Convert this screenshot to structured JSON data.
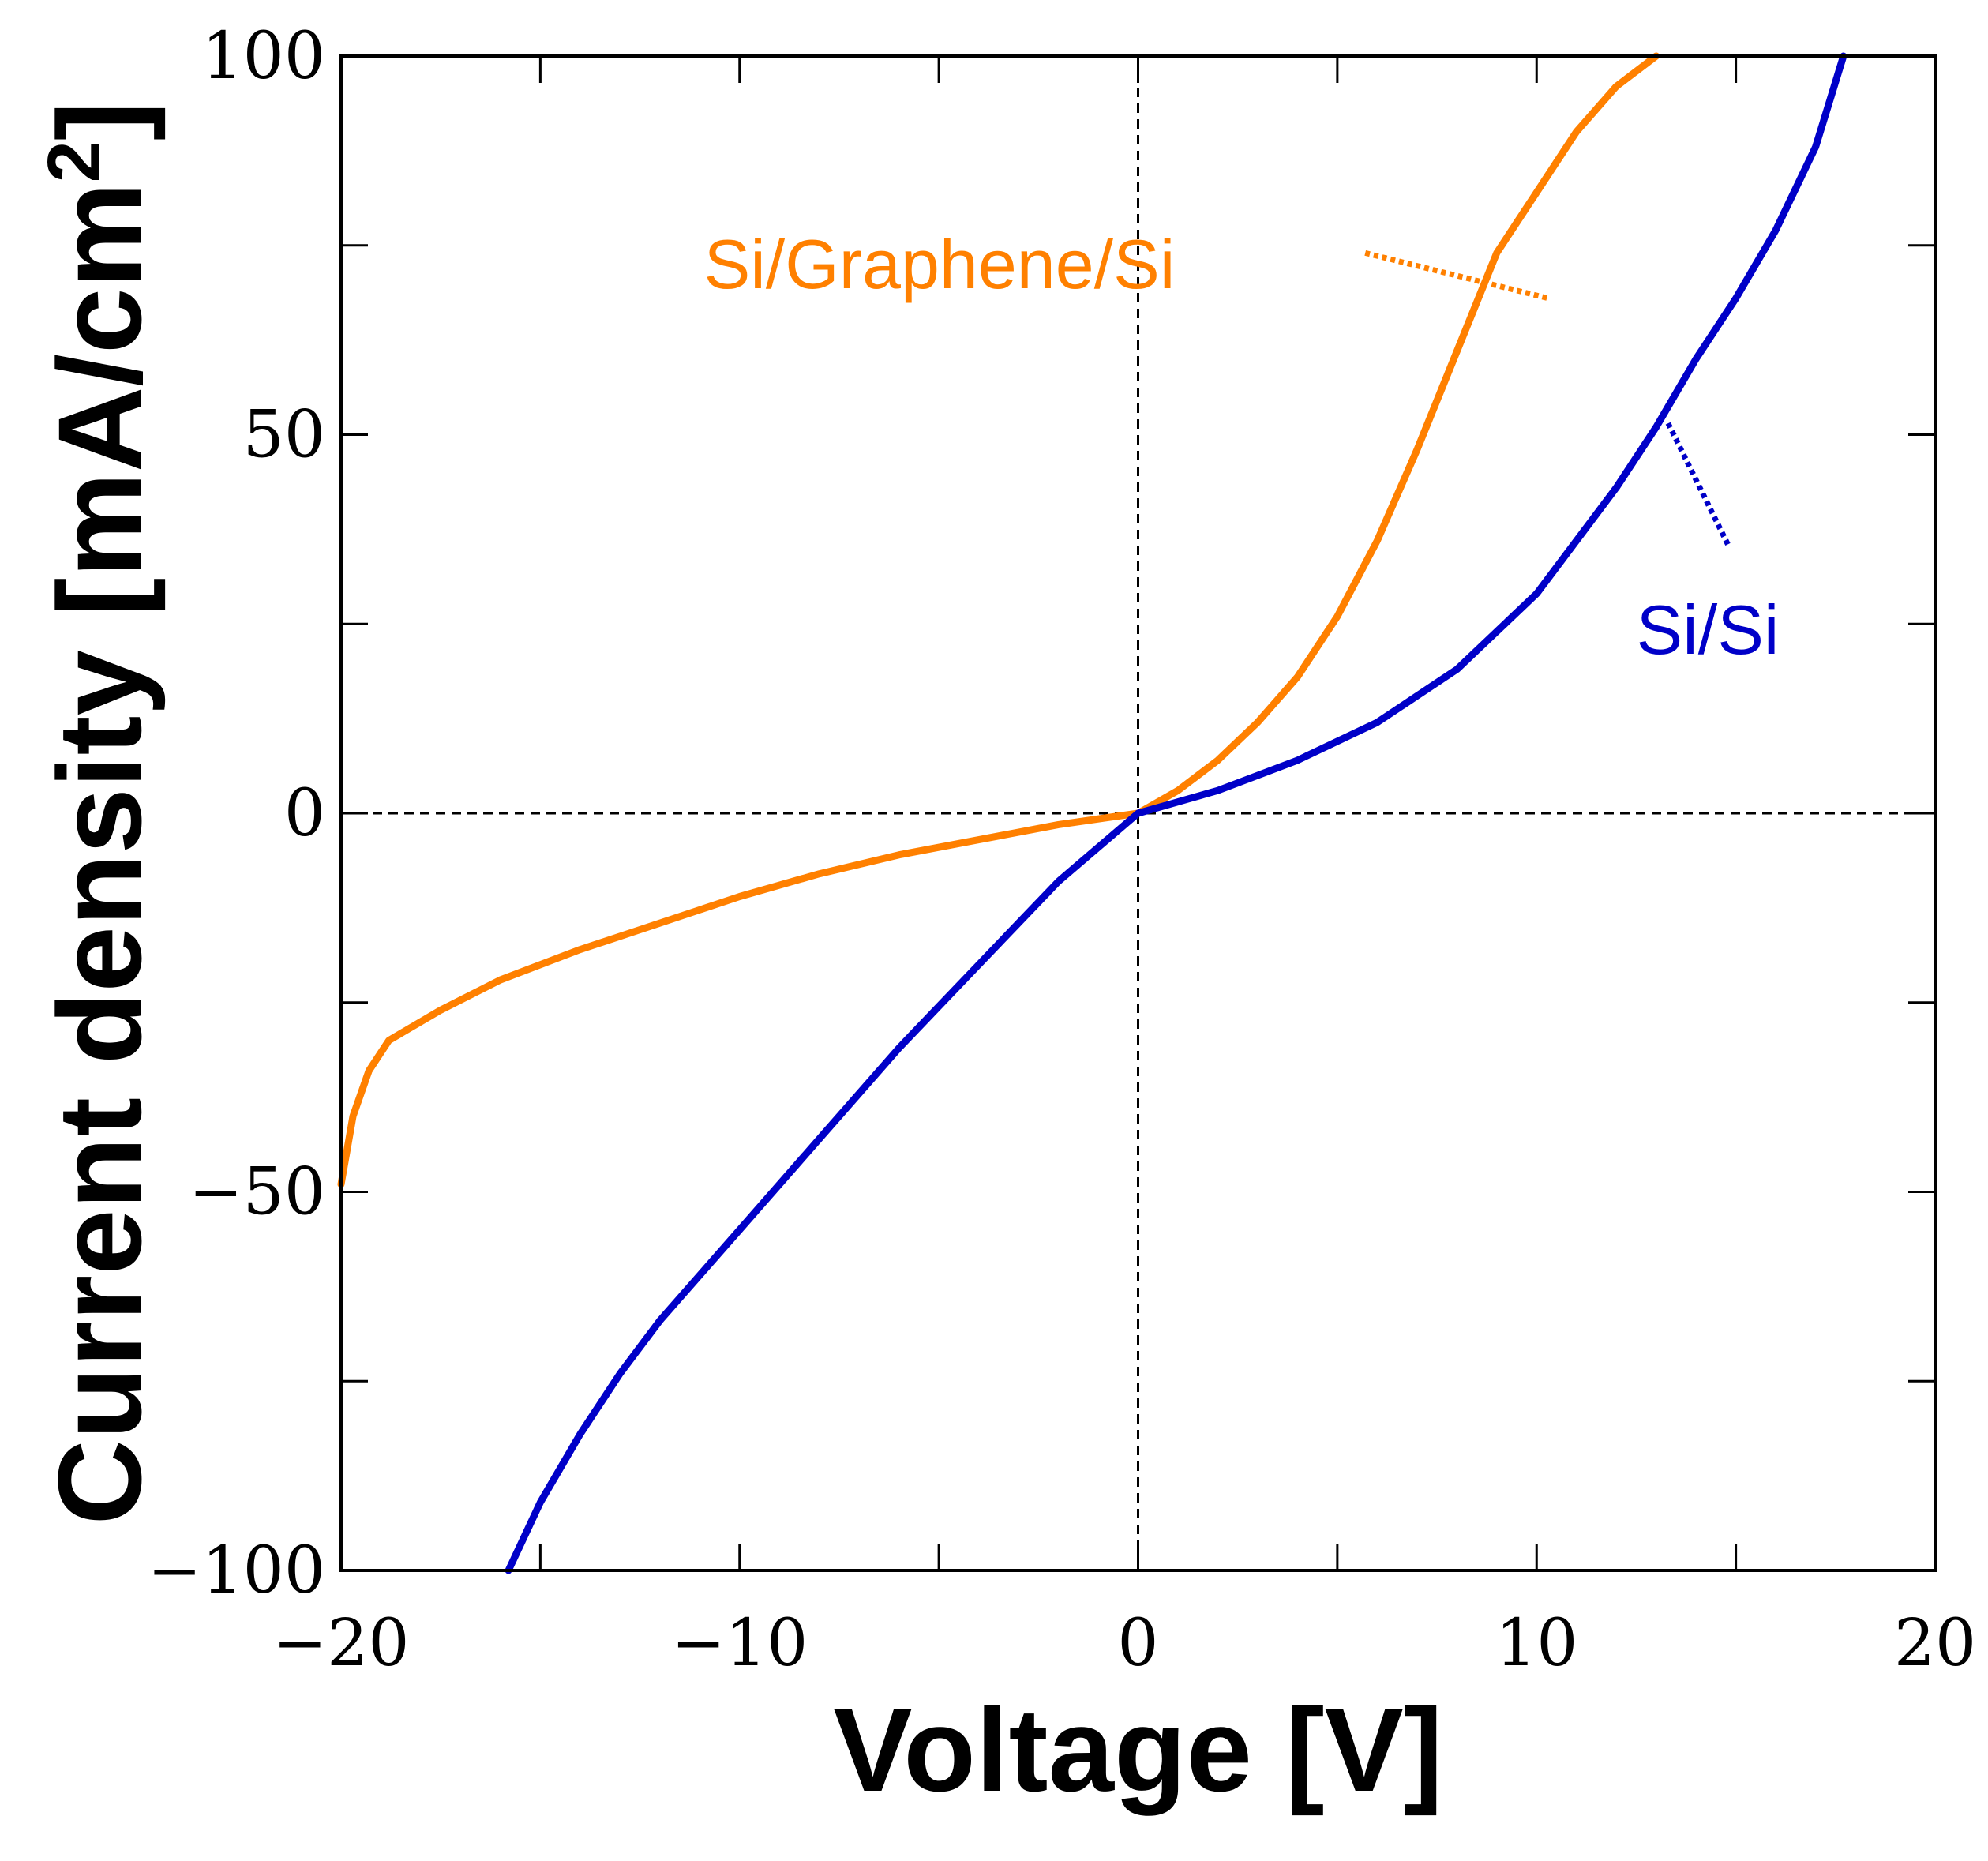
{
  "chart_data": {
    "type": "line",
    "title": "",
    "xlabel": "Voltage [V]",
    "ylabel_main": "Current density [mA/cm",
    "ylabel_sup": "2",
    "ylabel_close": "]",
    "xlim": [
      -20,
      20
    ],
    "ylim": [
      -100,
      100
    ],
    "xticks": [
      -20,
      -10,
      0,
      10,
      20
    ],
    "yticks": [
      -100,
      -50,
      0,
      50,
      100
    ],
    "xtick_labels": [
      "−20",
      "−10",
      "0",
      "10",
      "20"
    ],
    "ytick_labels": [
      "−100",
      "−50",
      "0",
      "50",
      "100"
    ],
    "x_minor_step": 5,
    "y_minor_step": 25,
    "zero_lines": true,
    "series": [
      {
        "name": "Si/Graphene/Si",
        "color": "#ff8000",
        "x": [
          -20,
          -19.7,
          -19.3,
          -18.8,
          -17.5,
          -16,
          -14,
          -12,
          -10,
          -8,
          -6,
          -4,
          -2,
          0,
          1,
          2,
          3,
          4,
          5,
          6,
          7,
          8,
          9,
          10,
          11,
          12,
          13
        ],
        "y": [
          -49,
          -40,
          -34,
          -30,
          -26,
          -22,
          -18,
          -14.5,
          -11,
          -8,
          -5.5,
          -3.5,
          -1.5,
          0,
          3,
          7,
          12,
          18,
          26,
          36,
          48,
          61,
          74,
          82,
          90,
          96,
          100
        ]
      },
      {
        "name": "Si/Si",
        "color": "#0000c8",
        "x": [
          -15.8,
          -15,
          -14,
          -13,
          -12,
          -10,
          -8,
          -6,
          -4,
          -2,
          0,
          2,
          4,
          6,
          8,
          10,
          12,
          13,
          14,
          15,
          16,
          17,
          17.7
        ],
        "y": [
          -100,
          -91,
          -82,
          -74,
          -67,
          -55,
          -43,
          -31,
          -20,
          -9,
          0,
          3,
          7,
          12,
          19,
          29,
          43,
          51,
          60,
          68,
          77,
          88,
          100
        ]
      }
    ],
    "annotations": [
      {
        "text": "Si/Graphene/Si",
        "series": 0,
        "color": "#ff8000",
        "pointer_from": [
          5.7,
          74
        ],
        "pointer_to": [
          10.3,
          68
        ]
      },
      {
        "text": "Si/Si",
        "series": 1,
        "color": "#0000c8",
        "pointer_from": [
          13.3,
          51.5
        ],
        "pointer_to": [
          14.8,
          35.5
        ]
      }
    ]
  }
}
